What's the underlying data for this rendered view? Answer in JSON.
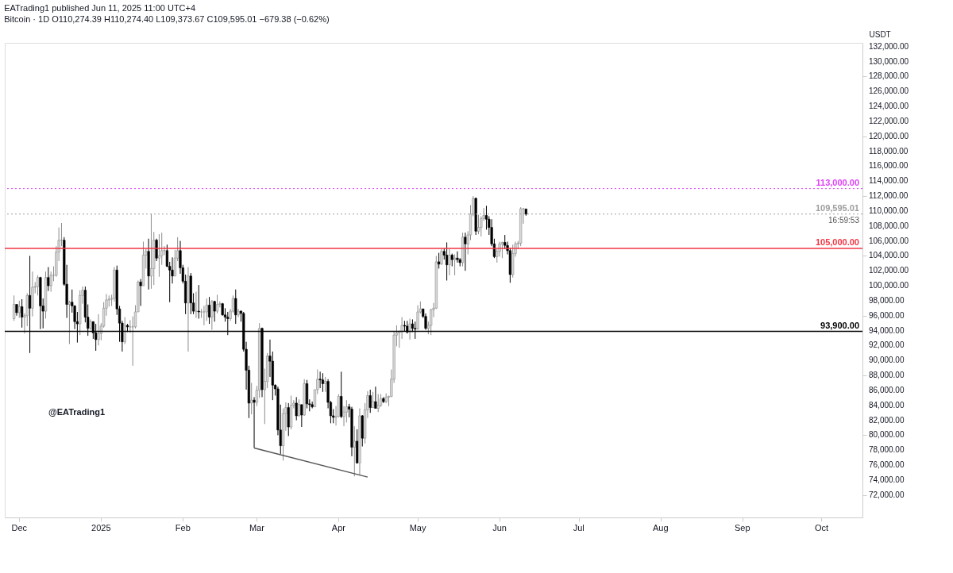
{
  "chart_data": {
    "type": "candlestick",
    "title": "EATrading1 published Jun 11, 2025 11:00 UTC+4",
    "subtitle": "Bitcoin · 1D  O110,274.39  H110,274.40  L109,373.67  C109,595.01  −679.38 (−0.62%)",
    "ylabel": "USDT",
    "x": [
      "2024-11-29",
      "2024-11-30",
      "2024-12-01",
      "2024-12-02",
      "2024-12-03",
      "2024-12-04",
      "2024-12-05",
      "2024-12-06",
      "2024-12-07",
      "2024-12-08",
      "2024-12-09",
      "2024-12-10",
      "2024-12-11",
      "2024-12-12",
      "2024-12-13",
      "2024-12-14",
      "2024-12-15",
      "2024-12-16",
      "2024-12-17",
      "2024-12-18",
      "2024-12-19",
      "2024-12-20",
      "2024-12-21",
      "2024-12-22",
      "2024-12-23",
      "2024-12-24",
      "2024-12-25",
      "2024-12-26",
      "2024-12-27",
      "2024-12-28",
      "2024-12-29",
      "2024-12-30",
      "2024-12-31",
      "2025-01-01",
      "2025-01-02",
      "2025-01-03",
      "2025-01-04",
      "2025-01-05",
      "2025-01-06",
      "2025-01-07",
      "2025-01-08",
      "2025-01-09",
      "2025-01-10",
      "2025-01-11",
      "2025-01-12",
      "2025-01-13",
      "2025-01-14",
      "2025-01-15",
      "2025-01-16",
      "2025-01-17",
      "2025-01-18",
      "2025-01-19",
      "2025-01-20",
      "2025-01-21",
      "2025-01-22",
      "2025-01-23",
      "2025-01-24",
      "2025-01-25",
      "2025-01-26",
      "2025-01-27",
      "2025-01-28",
      "2025-01-29",
      "2025-01-30",
      "2025-01-31",
      "2025-02-01",
      "2025-02-02",
      "2025-02-03",
      "2025-02-04",
      "2025-02-05",
      "2025-02-06",
      "2025-02-07",
      "2025-02-08",
      "2025-02-09",
      "2025-02-10",
      "2025-02-11",
      "2025-02-12",
      "2025-02-13",
      "2025-02-14",
      "2025-02-15",
      "2025-02-16",
      "2025-02-17",
      "2025-02-18",
      "2025-02-19",
      "2025-02-20",
      "2025-02-21",
      "2025-02-22",
      "2025-02-23",
      "2025-02-24",
      "2025-02-25",
      "2025-02-26",
      "2025-02-27",
      "2025-02-28",
      "2025-03-01",
      "2025-03-02",
      "2025-03-03",
      "2025-03-04",
      "2025-03-05",
      "2025-03-06",
      "2025-03-07",
      "2025-03-08",
      "2025-03-09",
      "2025-03-10",
      "2025-03-11",
      "2025-03-12",
      "2025-03-13",
      "2025-03-14",
      "2025-03-15",
      "2025-03-16",
      "2025-03-17",
      "2025-03-18",
      "2025-03-19",
      "2025-03-20",
      "2025-03-21",
      "2025-03-22",
      "2025-03-23",
      "2025-03-24",
      "2025-03-25",
      "2025-03-26",
      "2025-03-27",
      "2025-03-28",
      "2025-03-29",
      "2025-03-30",
      "2025-03-31",
      "2025-04-01",
      "2025-04-02",
      "2025-04-03",
      "2025-04-04",
      "2025-04-05",
      "2025-04-06",
      "2025-04-07",
      "2025-04-08",
      "2025-04-09",
      "2025-04-10",
      "2025-04-11",
      "2025-04-12",
      "2025-04-13",
      "2025-04-14",
      "2025-04-15",
      "2025-04-16",
      "2025-04-17",
      "2025-04-18",
      "2025-04-19",
      "2025-04-20",
      "2025-04-21",
      "2025-04-22",
      "2025-04-23",
      "2025-04-24",
      "2025-04-25",
      "2025-04-26",
      "2025-04-27",
      "2025-04-28",
      "2025-04-29",
      "2025-04-30",
      "2025-05-01",
      "2025-05-02",
      "2025-05-03",
      "2025-05-04",
      "2025-05-05",
      "2025-05-06",
      "2025-05-07",
      "2025-05-08",
      "2025-05-09",
      "2025-05-10",
      "2025-05-11",
      "2025-05-12",
      "2025-05-13",
      "2025-05-14",
      "2025-05-15",
      "2025-05-16",
      "2025-05-17",
      "2025-05-18",
      "2025-05-19",
      "2025-05-20",
      "2025-05-21",
      "2025-05-22",
      "2025-05-23",
      "2025-05-24",
      "2025-05-25",
      "2025-05-26",
      "2025-05-27",
      "2025-05-28",
      "2025-05-29",
      "2025-05-30",
      "2025-05-31",
      "2025-06-01",
      "2025-06-02",
      "2025-06-03",
      "2025-06-04",
      "2025-06-05",
      "2025-06-06",
      "2025-06-07",
      "2025-06-08",
      "2025-06-09",
      "2025-06-10",
      "2025-06-11"
    ],
    "ohlc": [
      [
        95600,
        98700,
        95300,
        97500
      ],
      [
        97500,
        97500,
        96000,
        96400
      ],
      [
        96400,
        98000,
        95700,
        97200
      ],
      [
        97200,
        98200,
        94400,
        95800
      ],
      [
        95800,
        96300,
        93600,
        96000
      ],
      [
        96000,
        99000,
        94600,
        98700
      ],
      [
        98700,
        104000,
        91000,
        97000
      ],
      [
        97000,
        101900,
        95900,
        99800
      ],
      [
        99800,
        100500,
        99000,
        99900
      ],
      [
        99900,
        101400,
        98700,
        101100
      ],
      [
        101100,
        101200,
        94200,
        97300
      ],
      [
        97300,
        98300,
        94300,
        96600
      ],
      [
        96600,
        101900,
        95600,
        101100
      ],
      [
        101100,
        102500,
        99300,
        100000
      ],
      [
        100000,
        101900,
        99200,
        101400
      ],
      [
        101400,
        102600,
        100600,
        101400
      ],
      [
        101400,
        105300,
        101200,
        104500
      ],
      [
        104500,
        107800,
        103300,
        106100
      ],
      [
        106100,
        108400,
        105300,
        106100
      ],
      [
        106100,
        106500,
        100000,
        100200
      ],
      [
        100200,
        102800,
        95700,
        97500
      ],
      [
        97500,
        98000,
        92200,
        97800
      ],
      [
        97800,
        99500,
        96400,
        97300
      ],
      [
        97300,
        97400,
        94200,
        95200
      ],
      [
        95200,
        96500,
        92400,
        94900
      ],
      [
        94900,
        99400,
        93400,
        98700
      ],
      [
        98700,
        99900,
        97600,
        99400
      ],
      [
        99400,
        99900,
        95100,
        95800
      ],
      [
        95800,
        97500,
        93300,
        94300
      ],
      [
        94300,
        95500,
        94100,
        95200
      ],
      [
        95200,
        95200,
        92900,
        93700
      ],
      [
        93700,
        94900,
        91300,
        92800
      ],
      [
        92800,
        96200,
        92000,
        93600
      ],
      [
        93600,
        95000,
        92700,
        94600
      ],
      [
        94600,
        97800,
        94400,
        97000
      ],
      [
        97000,
        98900,
        96000,
        98100
      ],
      [
        98100,
        98700,
        97200,
        98200
      ],
      [
        98200,
        98800,
        97300,
        98300
      ],
      [
        98300,
        102500,
        97900,
        102100
      ],
      [
        102100,
        102700,
        96100,
        96900
      ],
      [
        96900,
        97300,
        92500,
        95000
      ],
      [
        95000,
        95300,
        91200,
        92500
      ],
      [
        92500,
        95800,
        92200,
        94700
      ],
      [
        94700,
        94900,
        93800,
        94500
      ],
      [
        94500,
        95400,
        93700,
        94500
      ],
      [
        94500,
        95900,
        89300,
        94500
      ],
      [
        94500,
        97400,
        94300,
        96500
      ],
      [
        96500,
        100700,
        96500,
        100500
      ],
      [
        100500,
        100900,
        97300,
        100000
      ],
      [
        100000,
        105900,
        100000,
        104100
      ],
      [
        104100,
        104900,
        102300,
        104600
      ],
      [
        104600,
        106300,
        99500,
        101300
      ],
      [
        101300,
        109600,
        99600,
        102300
      ],
      [
        102300,
        107200,
        100100,
        106100
      ],
      [
        106100,
        106300,
        103300,
        103700
      ],
      [
        103700,
        106900,
        101200,
        104000
      ],
      [
        104000,
        107100,
        102800,
        104700
      ],
      [
        104700,
        105300,
        104100,
        104700
      ],
      [
        104700,
        105500,
        102500,
        102600
      ],
      [
        102600,
        103200,
        97800,
        102100
      ],
      [
        102100,
        103800,
        100300,
        101300
      ],
      [
        101300,
        104800,
        101300,
        103700
      ],
      [
        103700,
        106500,
        103300,
        104700
      ],
      [
        104700,
        106000,
        101600,
        102400
      ],
      [
        102400,
        102800,
        100300,
        100600
      ],
      [
        100600,
        101500,
        96200,
        97700
      ],
      [
        97700,
        102500,
        91200,
        101300
      ],
      [
        101300,
        101700,
        96200,
        97700
      ],
      [
        97700,
        99000,
        96200,
        96600
      ],
      [
        96600,
        99200,
        95700,
        96600
      ],
      [
        96600,
        100100,
        95600,
        96500
      ],
      [
        96500,
        96900,
        95700,
        96500
      ],
      [
        96500,
        97300,
        94700,
        96500
      ],
      [
        96500,
        98300,
        95300,
        97400
      ],
      [
        97400,
        98500,
        94900,
        95800
      ],
      [
        95800,
        98100,
        94100,
        97900
      ],
      [
        97900,
        98000,
        95200,
        96600
      ],
      [
        96600,
        98800,
        96300,
        97500
      ],
      [
        97500,
        97900,
        97100,
        97600
      ],
      [
        97600,
        97700,
        96000,
        96100
      ],
      [
        96100,
        97000,
        95200,
        95800
      ],
      [
        95800,
        96500,
        93400,
        95600
      ],
      [
        95600,
        96900,
        95300,
        96600
      ],
      [
        96600,
        98700,
        96400,
        98300
      ],
      [
        98300,
        99500,
        94900,
        96100
      ],
      [
        96100,
        96900,
        95800,
        96600
      ],
      [
        96600,
        96700,
        95200,
        96300
      ],
      [
        96300,
        96500,
        91200,
        91500
      ],
      [
        91500,
        92500,
        86100,
        88700
      ],
      [
        88700,
        89300,
        82300,
        84300
      ],
      [
        84300,
        87000,
        82800,
        84700
      ],
      [
        84700,
        85100,
        78300,
        84400
      ],
      [
        84400,
        86600,
        83900,
        86000
      ],
      [
        86000,
        95000,
        85000,
        94300
      ],
      [
        94300,
        94400,
        85100,
        86100
      ],
      [
        86100,
        88900,
        81500,
        87200
      ],
      [
        87200,
        91000,
        86300,
        90600
      ],
      [
        90600,
        92800,
        87800,
        89900
      ],
      [
        89900,
        91200,
        84700,
        86700
      ],
      [
        86700,
        86800,
        85300,
        86200
      ],
      [
        86200,
        86500,
        80000,
        80700
      ],
      [
        80700,
        84100,
        77500,
        78600
      ],
      [
        78600,
        83600,
        76600,
        82900
      ],
      [
        82900,
        84400,
        80600,
        83700
      ],
      [
        83700,
        84300,
        79900,
        81100
      ],
      [
        81100,
        85300,
        80800,
        84000
      ],
      [
        84000,
        84700,
        83600,
        84300
      ],
      [
        84300,
        85100,
        82000,
        82600
      ],
      [
        82600,
        84800,
        82500,
        84100
      ],
      [
        84100,
        84100,
        81100,
        82700
      ],
      [
        82700,
        87500,
        82600,
        86900
      ],
      [
        86900,
        87400,
        83600,
        84200
      ],
      [
        84200,
        84800,
        83200,
        84100
      ],
      [
        84100,
        84500,
        83600,
        83800
      ],
      [
        83800,
        86100,
        83800,
        86100
      ],
      [
        86100,
        88800,
        85500,
        87500
      ],
      [
        87500,
        88500,
        86300,
        87400
      ],
      [
        87400,
        88300,
        85800,
        86900
      ],
      [
        86900,
        87800,
        85800,
        87200
      ],
      [
        87200,
        87500,
        83600,
        84400
      ],
      [
        84400,
        84600,
        81600,
        82600
      ],
      [
        82600,
        83500,
        81600,
        82400
      ],
      [
        82400,
        83900,
        81300,
        82500
      ],
      [
        82500,
        85500,
        82400,
        85200
      ],
      [
        85200,
        88500,
        82300,
        82500
      ],
      [
        82500,
        83900,
        81200,
        83100
      ],
      [
        83100,
        84700,
        81700,
        83800
      ],
      [
        83800,
        84200,
        82400,
        83500
      ],
      [
        83500,
        83800,
        77200,
        78400
      ],
      [
        78400,
        81200,
        74500,
        79200
      ],
      [
        79200,
        80800,
        76200,
        76300
      ],
      [
        76300,
        83600,
        74600,
        82600
      ],
      [
        82600,
        82700,
        78500,
        79600
      ],
      [
        79600,
        84300,
        78900,
        83400
      ],
      [
        83400,
        85900,
        82300,
        85300
      ],
      [
        85300,
        86100,
        83000,
        83700
      ],
      [
        83700,
        85800,
        83700,
        84500
      ],
      [
        84500,
        86500,
        83600,
        83600
      ],
      [
        83600,
        85500,
        83100,
        84000
      ],
      [
        84000,
        85500,
        83800,
        84900
      ],
      [
        84900,
        85100,
        84300,
        84500
      ],
      [
        84500,
        85600,
        84300,
        85100
      ],
      [
        85100,
        85300,
        83900,
        85200
      ],
      [
        85200,
        88800,
        85100,
        87500
      ],
      [
        87500,
        93900,
        87000,
        93400
      ],
      [
        93400,
        94700,
        91900,
        93700
      ],
      [
        93700,
        94000,
        91700,
        93900
      ],
      [
        93900,
        95800,
        92900,
        94700
      ],
      [
        94700,
        95300,
        93900,
        94600
      ],
      [
        94600,
        95300,
        93600,
        93800
      ],
      [
        93800,
        95600,
        92800,
        94900
      ],
      [
        94900,
        95500,
        93800,
        94300
      ],
      [
        94300,
        95200,
        92900,
        94200
      ],
      [
        94200,
        97400,
        94100,
        96500
      ],
      [
        96500,
        97900,
        96300,
        96900
      ],
      [
        96900,
        96900,
        95700,
        95900
      ],
      [
        95900,
        96300,
        94100,
        94300
      ],
      [
        94300,
        95200,
        93500,
        94700
      ],
      [
        94700,
        96900,
        93400,
        96800
      ],
      [
        96800,
        97700,
        95800,
        97000
      ],
      [
        97000,
        104000,
        96900,
        103200
      ],
      [
        103200,
        104400,
        102300,
        102900
      ],
      [
        102900,
        104900,
        102800,
        104600
      ],
      [
        104600,
        105000,
        103500,
        104100
      ],
      [
        104100,
        105800,
        100700,
        102800
      ],
      [
        102800,
        104900,
        101400,
        104100
      ],
      [
        104100,
        104300,
        102600,
        103500
      ],
      [
        103500,
        104200,
        101400,
        103700
      ],
      [
        103700,
        104600,
        103100,
        103500
      ],
      [
        103500,
        103700,
        102600,
        103100
      ],
      [
        103100,
        107100,
        102600,
        106500
      ],
      [
        106500,
        107100,
        102000,
        105600
      ],
      [
        105600,
        107300,
        104200,
        106800
      ],
      [
        106800,
        110800,
        106100,
        109600
      ],
      [
        109600,
        112000,
        109300,
        111700
      ],
      [
        111700,
        111800,
        106800,
        107300
      ],
      [
        107300,
        109500,
        106900,
        107800
      ],
      [
        107800,
        109300,
        106600,
        109000
      ],
      [
        109000,
        110400,
        108700,
        109400
      ],
      [
        109400,
        110700,
        107500,
        108900
      ],
      [
        108900,
        109300,
        106800,
        107800
      ],
      [
        107800,
        108900,
        105300,
        105600
      ],
      [
        105600,
        106300,
        103700,
        103900
      ],
      [
        103900,
        104900,
        103100,
        104600
      ],
      [
        104600,
        105900,
        103900,
        105600
      ],
      [
        105600,
        105900,
        103700,
        105800
      ],
      [
        105800,
        106800,
        104900,
        105400
      ],
      [
        105400,
        105900,
        104200,
        104700
      ],
      [
        104700,
        105100,
        100400,
        101500
      ],
      [
        101500,
        105500,
        101100,
        104300
      ],
      [
        104300,
        105900,
        103900,
        105600
      ],
      [
        105600,
        106000,
        104900,
        105700
      ],
      [
        105700,
        110500,
        105300,
        110300
      ],
      [
        110300,
        110400,
        108300,
        110300
      ],
      [
        110274.39,
        110274.4,
        109373.67,
        109595.01
      ]
    ],
    "series": [
      {
        "type": "line",
        "x": [
          "2025-02-28",
          "2025-04-12"
        ],
        "values": [
          78300,
          74400
        ],
        "color": "#555555"
      }
    ],
    "ref_lines": [
      {
        "axis": "y",
        "value": 113000,
        "label": "113,000.00",
        "color": "#e040fb",
        "line_style": "dotted"
      },
      {
        "axis": "y",
        "value": 109595.01,
        "label": "109,595.01",
        "color": "#9e9e9e",
        "line_style": "dotted"
      },
      {
        "axis": "y",
        "value": 105000,
        "label": "105,000.00",
        "color": "#f23645",
        "line_style": "solid"
      },
      {
        "axis": "y",
        "value": 93900,
        "label": "93,900.00",
        "color": "#000000",
        "line_style": "solid"
      }
    ],
    "annotations": [
      "@EATrading1",
      "16:59:53"
    ],
    "xlim": [
      "2024-11-27",
      "2025-10-15"
    ],
    "xticks": [
      {
        "value": "2024-12-01",
        "label": "Dec"
      },
      {
        "value": "2025-01-01",
        "label": "2025"
      },
      {
        "value": "2025-02-01",
        "label": "Feb"
      },
      {
        "value": "2025-03-01",
        "label": "Mar"
      },
      {
        "value": "2025-04-01",
        "label": "Apr"
      },
      {
        "value": "2025-05-01",
        "label": "May"
      },
      {
        "value": "2025-06-01",
        "label": "Jun"
      },
      {
        "value": "2025-07-01",
        "label": "Jul"
      },
      {
        "value": "2025-08-01",
        "label": "Aug"
      },
      {
        "value": "2025-09-01",
        "label": "Sep"
      },
      {
        "value": "2025-10-01",
        "label": "Oct"
      }
    ],
    "ylim": [
      69000,
      132500
    ],
    "yticks": [
      {
        "value": 72000,
        "label": "72,000.00"
      },
      {
        "value": 74000,
        "label": "74,000.00"
      },
      {
        "value": 76000,
        "label": "76,000.00"
      },
      {
        "value": 78000,
        "label": "78,000.00"
      },
      {
        "value": 80000,
        "label": "80,000.00"
      },
      {
        "value": 82000,
        "label": "82,000.00"
      },
      {
        "value": 84000,
        "label": "84,000.00"
      },
      {
        "value": 86000,
        "label": "86,000.00"
      },
      {
        "value": 88000,
        "label": "88,000.00"
      },
      {
        "value": 90000,
        "label": "90,000.00"
      },
      {
        "value": 92000,
        "label": "92,000.00"
      },
      {
        "value": 94000,
        "label": "94,000.00"
      },
      {
        "value": 96000,
        "label": "96,000.00"
      },
      {
        "value": 98000,
        "label": "98,000.00"
      },
      {
        "value": 100000,
        "label": "100,000.00"
      },
      {
        "value": 102000,
        "label": "102,000.00"
      },
      {
        "value": 104000,
        "label": "104,000.00"
      },
      {
        "value": 106000,
        "label": "106,000.00"
      },
      {
        "value": 108000,
        "label": "108,000.00"
      },
      {
        "value": 110000,
        "label": "110,000.00"
      },
      {
        "value": 112000,
        "label": "112,000.00"
      },
      {
        "value": 114000,
        "label": "114,000.00"
      },
      {
        "value": 116000,
        "label": "116,000.00"
      },
      {
        "value": 118000,
        "label": "118,000.00"
      },
      {
        "value": 120000,
        "label": "120,000.00"
      },
      {
        "value": 122000,
        "label": "122,000.00"
      },
      {
        "value": 124000,
        "label": "124,000.00"
      },
      {
        "value": 126000,
        "label": "126,000.00"
      },
      {
        "value": 128000,
        "label": "128,000.00"
      },
      {
        "value": 130000,
        "label": "130,000.00"
      },
      {
        "value": 132000,
        "label": "132,000.00"
      }
    ],
    "grid": false
  }
}
